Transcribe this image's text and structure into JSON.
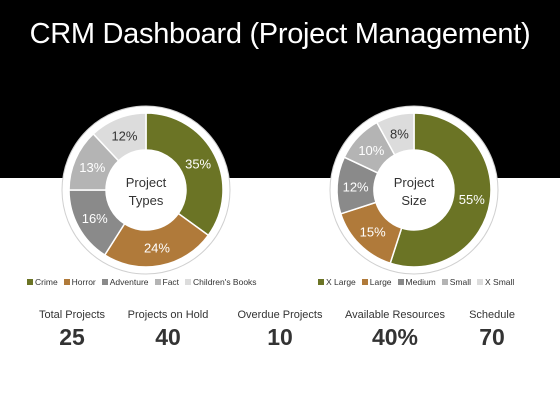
{
  "title": "CRM Dashboard (Project Management)",
  "chart_data": [
    {
      "type": "pie",
      "center_label": "Project Types",
      "categories": [
        "Crime",
        "Horror",
        "Adventure",
        "Fact",
        "Children's Books"
      ],
      "values": [
        35,
        24,
        16,
        13,
        12
      ],
      "value_labels": [
        "35%",
        "24%",
        "16%",
        "13%",
        "12%"
      ],
      "colors": [
        "#6b7425",
        "#b07a3a",
        "#8a8a8a",
        "#b4b4b4",
        "#dcdcdc"
      ],
      "label_colors": [
        "#ffffff",
        "#ffffff",
        "#ffffff",
        "#ffffff",
        "#333333"
      ]
    },
    {
      "type": "pie",
      "center_label": "Project Size",
      "categories": [
        "X Large",
        "Large",
        "Medium",
        "Small",
        "X Small"
      ],
      "values": [
        55,
        15,
        12,
        10,
        8
      ],
      "value_labels": [
        "55%",
        "15%",
        "12%",
        "10%",
        "8%"
      ],
      "colors": [
        "#6b7425",
        "#b07a3a",
        "#8a8a8a",
        "#b4b4b4",
        "#dcdcdc"
      ],
      "label_colors": [
        "#ffffff",
        "#ffffff",
        "#ffffff",
        "#ffffff",
        "#333333"
      ]
    }
  ],
  "kpis": [
    {
      "label": "Total Projects",
      "value": "25"
    },
    {
      "label": "Projects on Hold",
      "value": "40"
    },
    {
      "label": "Overdue Projects",
      "value": "10"
    },
    {
      "label": "Available Resources",
      "value": "40%"
    },
    {
      "label": "Schedule",
      "value": "70"
    }
  ]
}
